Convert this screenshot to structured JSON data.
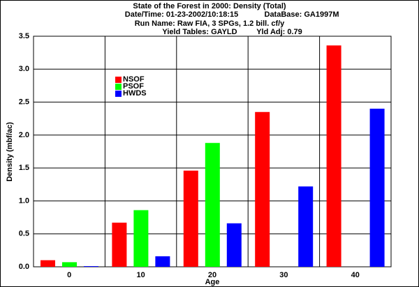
{
  "chart_data": {
    "type": "bar",
    "title": "State of the Forest in 2000: Density (Total)",
    "subtitle_lines": [
      [
        "Date/Time: 01-23-2002/10:18:15",
        "DataBase: GA1997M"
      ],
      [
        "Run Name: Raw FIA, 3 SPGs, 1.2 bill. cf/y"
      ],
      [
        "Yield Tables: GAYLD",
        "Yld Adj: 0.79"
      ]
    ],
    "x_label": "Age",
    "y_label": "Density (mbf/ac)",
    "categories": [
      "0",
      "10",
      "20",
      "30",
      "40"
    ],
    "series": [
      {
        "name": "NSOF",
        "color": "#ff0000",
        "values": [
          0.1,
          0.67,
          1.46,
          2.35,
          3.36
        ]
      },
      {
        "name": "PSOF",
        "color": "#00ff00",
        "values": [
          0.07,
          0.86,
          1.88,
          0,
          0
        ]
      },
      {
        "name": "HWDS",
        "color": "#0000ff",
        "values": [
          0.01,
          0.16,
          0.66,
          1.22,
          2.4
        ]
      }
    ],
    "ylim": [
      0,
      3.5
    ],
    "yticks": [
      {
        "value": 0,
        "label": "0.0"
      },
      0.5,
      {
        "value": 1,
        "label": "1.0"
      },
      1.5,
      {
        "value": 2,
        "label": "2.0"
      },
      2.5,
      {
        "value": 3,
        "label": "3.0"
      },
      3.5
    ],
    "grid": true
  }
}
